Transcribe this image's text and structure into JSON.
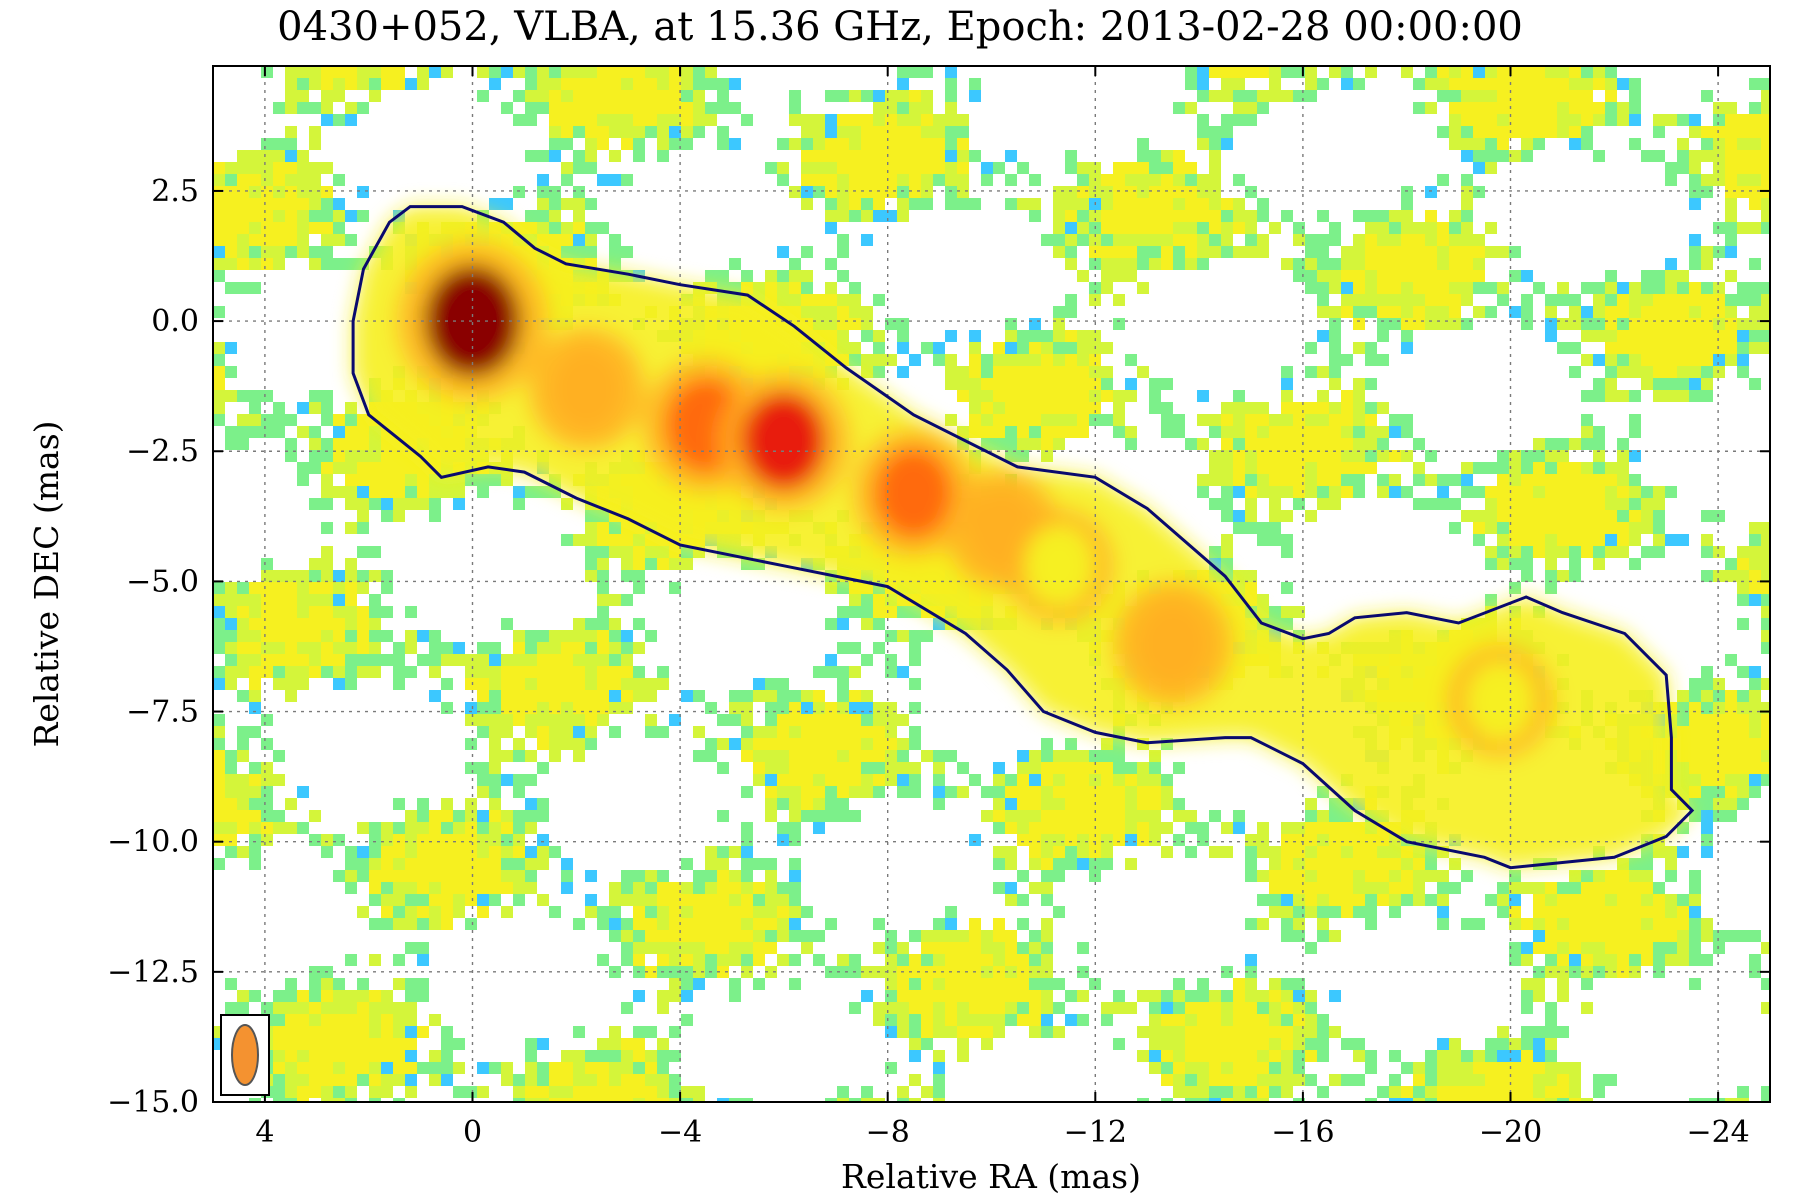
{
  "chart_data": {
    "type": "heatmap",
    "title": "0430+052, VLBA, at 15.36 GHz, Epoch: 2013-02-28 00:00:00",
    "xlabel": "Relative RA (mas)",
    "ylabel": "Relative DEC (mas)",
    "xlim": [
      5.0,
      -25.0
    ],
    "ylim": [
      -15.0,
      4.9
    ],
    "x_ticks": [
      4,
      0,
      -4,
      -8,
      -12,
      -16,
      -20,
      -24
    ],
    "x_tick_labels": [
      "4",
      "0",
      "−4",
      "−8",
      "−12",
      "−16",
      "−20",
      "−24"
    ],
    "y_ticks": [
      2.5,
      0.0,
      -2.5,
      -5.0,
      -7.5,
      -10.0,
      -12.5,
      -15.0
    ],
    "y_tick_labels": [
      "2.5",
      "0.0",
      "−2.5",
      "−5.0",
      "−7.5",
      "−10.0",
      "−12.5",
      "−15.0"
    ],
    "grid": true,
    "colormap": [
      "#3cc8ff",
      "#7cf08a",
      "#d4f53a",
      "#f6f020",
      "#ffb020",
      "#ff6a10",
      "#e81c0c",
      "#8a0000"
    ],
    "components": [
      {
        "x": 0.0,
        "y": 0.0,
        "intensity": 1.0
      },
      {
        "x": -2.2,
        "y": -1.3,
        "intensity": 0.55
      },
      {
        "x": -4.5,
        "y": -2.0,
        "intensity": 0.7
      },
      {
        "x": -6.0,
        "y": -2.3,
        "intensity": 0.75
      },
      {
        "x": -8.5,
        "y": -3.3,
        "intensity": 0.62
      },
      {
        "x": -10.2,
        "y": -4.0,
        "intensity": 0.52
      },
      {
        "x": -11.3,
        "y": -4.7,
        "intensity": 0.45
      },
      {
        "x": -13.5,
        "y": -6.2,
        "intensity": 0.58
      },
      {
        "x": -19.8,
        "y": -7.3,
        "intensity": 0.42
      }
    ],
    "contour": [
      [
        1.2,
        2.2
      ],
      [
        0.2,
        2.2
      ],
      [
        -0.6,
        1.9
      ],
      [
        -1.2,
        1.4
      ],
      [
        -1.8,
        1.1
      ],
      [
        -3.0,
        0.9
      ],
      [
        -4.0,
        0.7
      ],
      [
        -5.3,
        0.5
      ],
      [
        -6.2,
        -0.1
      ],
      [
        -7.2,
        -0.9
      ],
      [
        -8.5,
        -1.8
      ],
      [
        -10.5,
        -2.8
      ],
      [
        -12.0,
        -3.0
      ],
      [
        -13.0,
        -3.6
      ],
      [
        -14.5,
        -4.9
      ],
      [
        -15.2,
        -5.8
      ],
      [
        -16.0,
        -6.1
      ],
      [
        -16.5,
        -6.0
      ],
      [
        -17.0,
        -5.7
      ],
      [
        -18.0,
        -5.6
      ],
      [
        -19.0,
        -5.8
      ],
      [
        -20.3,
        -5.3
      ],
      [
        -21.0,
        -5.6
      ],
      [
        -22.2,
        -6.0
      ],
      [
        -23.0,
        -6.8
      ],
      [
        -23.1,
        -8.0
      ],
      [
        -23.1,
        -9.0
      ],
      [
        -23.5,
        -9.4
      ],
      [
        -23.0,
        -9.9
      ],
      [
        -22.0,
        -10.3
      ],
      [
        -21.0,
        -10.4
      ],
      [
        -20.0,
        -10.5
      ],
      [
        -19.5,
        -10.3
      ],
      [
        -18.0,
        -10.0
      ],
      [
        -17.0,
        -9.4
      ],
      [
        -16.0,
        -8.5
      ],
      [
        -15.0,
        -8.0
      ],
      [
        -14.5,
        -8.0
      ],
      [
        -13.0,
        -8.1
      ],
      [
        -12.0,
        -7.9
      ],
      [
        -11.0,
        -7.5
      ],
      [
        -10.3,
        -6.7
      ],
      [
        -9.5,
        -6.0
      ],
      [
        -8.0,
        -5.1
      ],
      [
        -6.0,
        -4.7
      ],
      [
        -4.0,
        -4.3
      ],
      [
        -3.0,
        -3.8
      ],
      [
        -2.0,
        -3.4
      ],
      [
        -1.0,
        -2.9
      ],
      [
        -0.3,
        -2.8
      ],
      [
        0.6,
        -3.0
      ],
      [
        1.0,
        -2.6
      ],
      [
        1.5,
        -2.2
      ],
      [
        2.0,
        -1.8
      ],
      [
        2.3,
        -1.0
      ],
      [
        2.3,
        0.0
      ],
      [
        2.1,
        1.0
      ],
      [
        1.6,
        1.9
      ],
      [
        1.2,
        2.2
      ]
    ],
    "beam": {
      "major_mas": 2.2,
      "minor_mas": 1.2,
      "pa_deg": 0
    }
  },
  "colors": {
    "contour": "#0a0a6e",
    "beam_fill": "#f49230",
    "grid": "#7a7a7a"
  }
}
